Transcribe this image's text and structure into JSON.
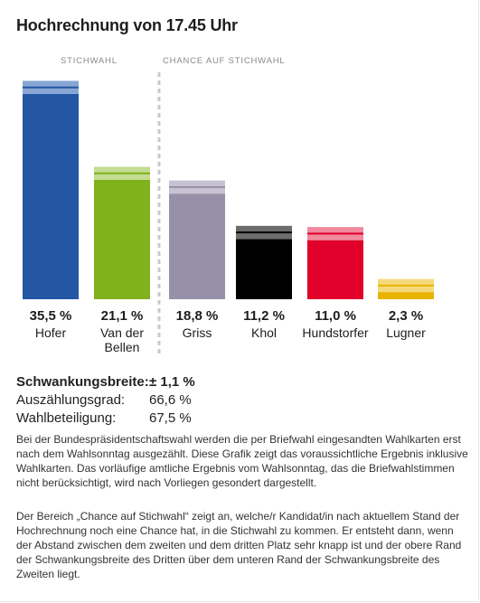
{
  "title": "Hochrechnung von 17.45 Uhr",
  "section_labels": {
    "runoff": "STICHWAHL",
    "chance": "CHANCE AUF STICHWAHL"
  },
  "chart_data": {
    "type": "bar",
    "title": "Hochrechnung von 17.45 Uhr",
    "unit": "%",
    "error_margin": 1.1,
    "ylim": [
      0,
      37
    ],
    "categories": [
      "Hofer",
      "Van der Bellen",
      "Griss",
      "Khol",
      "Hundstorfer",
      "Lugner"
    ],
    "category_lines": [
      [
        "Hofer"
      ],
      [
        "Van der",
        "Bellen"
      ],
      [
        "Griss"
      ],
      [
        "Khol"
      ],
      [
        "Hundstorfer"
      ],
      [
        "Lugner"
      ]
    ],
    "values": [
      35.5,
      21.1,
      18.8,
      11.2,
      11.0,
      2.3
    ],
    "value_labels": [
      "35,5 %",
      "21,1 %",
      "18,8 %",
      "11,2 %",
      "11,0 %",
      "2,3 %"
    ],
    "colors": [
      "#2456a4",
      "#7fb21c",
      "#9690a9",
      "#000000",
      "#e0002a",
      "#e8b400"
    ],
    "band_colors": [
      "#88a6d4",
      "#c3dd92",
      "#c6c2d2",
      "#6c6c6c",
      "#f08a9c",
      "#f4d97c"
    ],
    "groups": [
      {
        "label": "STICHWAHL",
        "categories": [
          "Hofer",
          "Van der Bellen"
        ]
      },
      {
        "label": "CHANCE AUF STICHWAHL",
        "categories": [
          "Griss",
          "Khol",
          "Hundstorfer",
          "Lugner"
        ]
      }
    ]
  },
  "stats": [
    {
      "label": "Schwankungsbreite:",
      "value": "± 1,1 %"
    },
    {
      "label": "Auszählungsgrad:",
      "value": "66,6 %"
    },
    {
      "label": "Wahlbeteiligung:",
      "value": "67,5 %"
    }
  ],
  "paragraphs": [
    "Bei der Bundespräsidentschaftswahl werden die per Briefwahl eingesandten Wahlkarten erst nach dem Wahlsonntag ausgezählt. Diese Grafik zeigt das voraussichtliche Ergebnis inklusive Wahlkarten. Das vorläufige amtliche Ergebnis vom Wahlsonntag, das die Briefwahlstimmen nicht berücksichtigt, wird nach Vorliegen gesondert dargestellt.",
    "Der Bereich „Chance auf Stichwahl“ zeigt an, welche/r Kandidat/in nach aktuellem Stand der Hochrechnung noch eine Chance hat, in die Stichwahl zu kommen. Er entsteht dann, wenn der Abstand zwischen dem zweiten und dem dritten Platz sehr knapp ist und der obere Rand der Schwankungsbreite des Dritten über dem unteren Rand der Schwankungsbreite des Zweiten liegt."
  ]
}
